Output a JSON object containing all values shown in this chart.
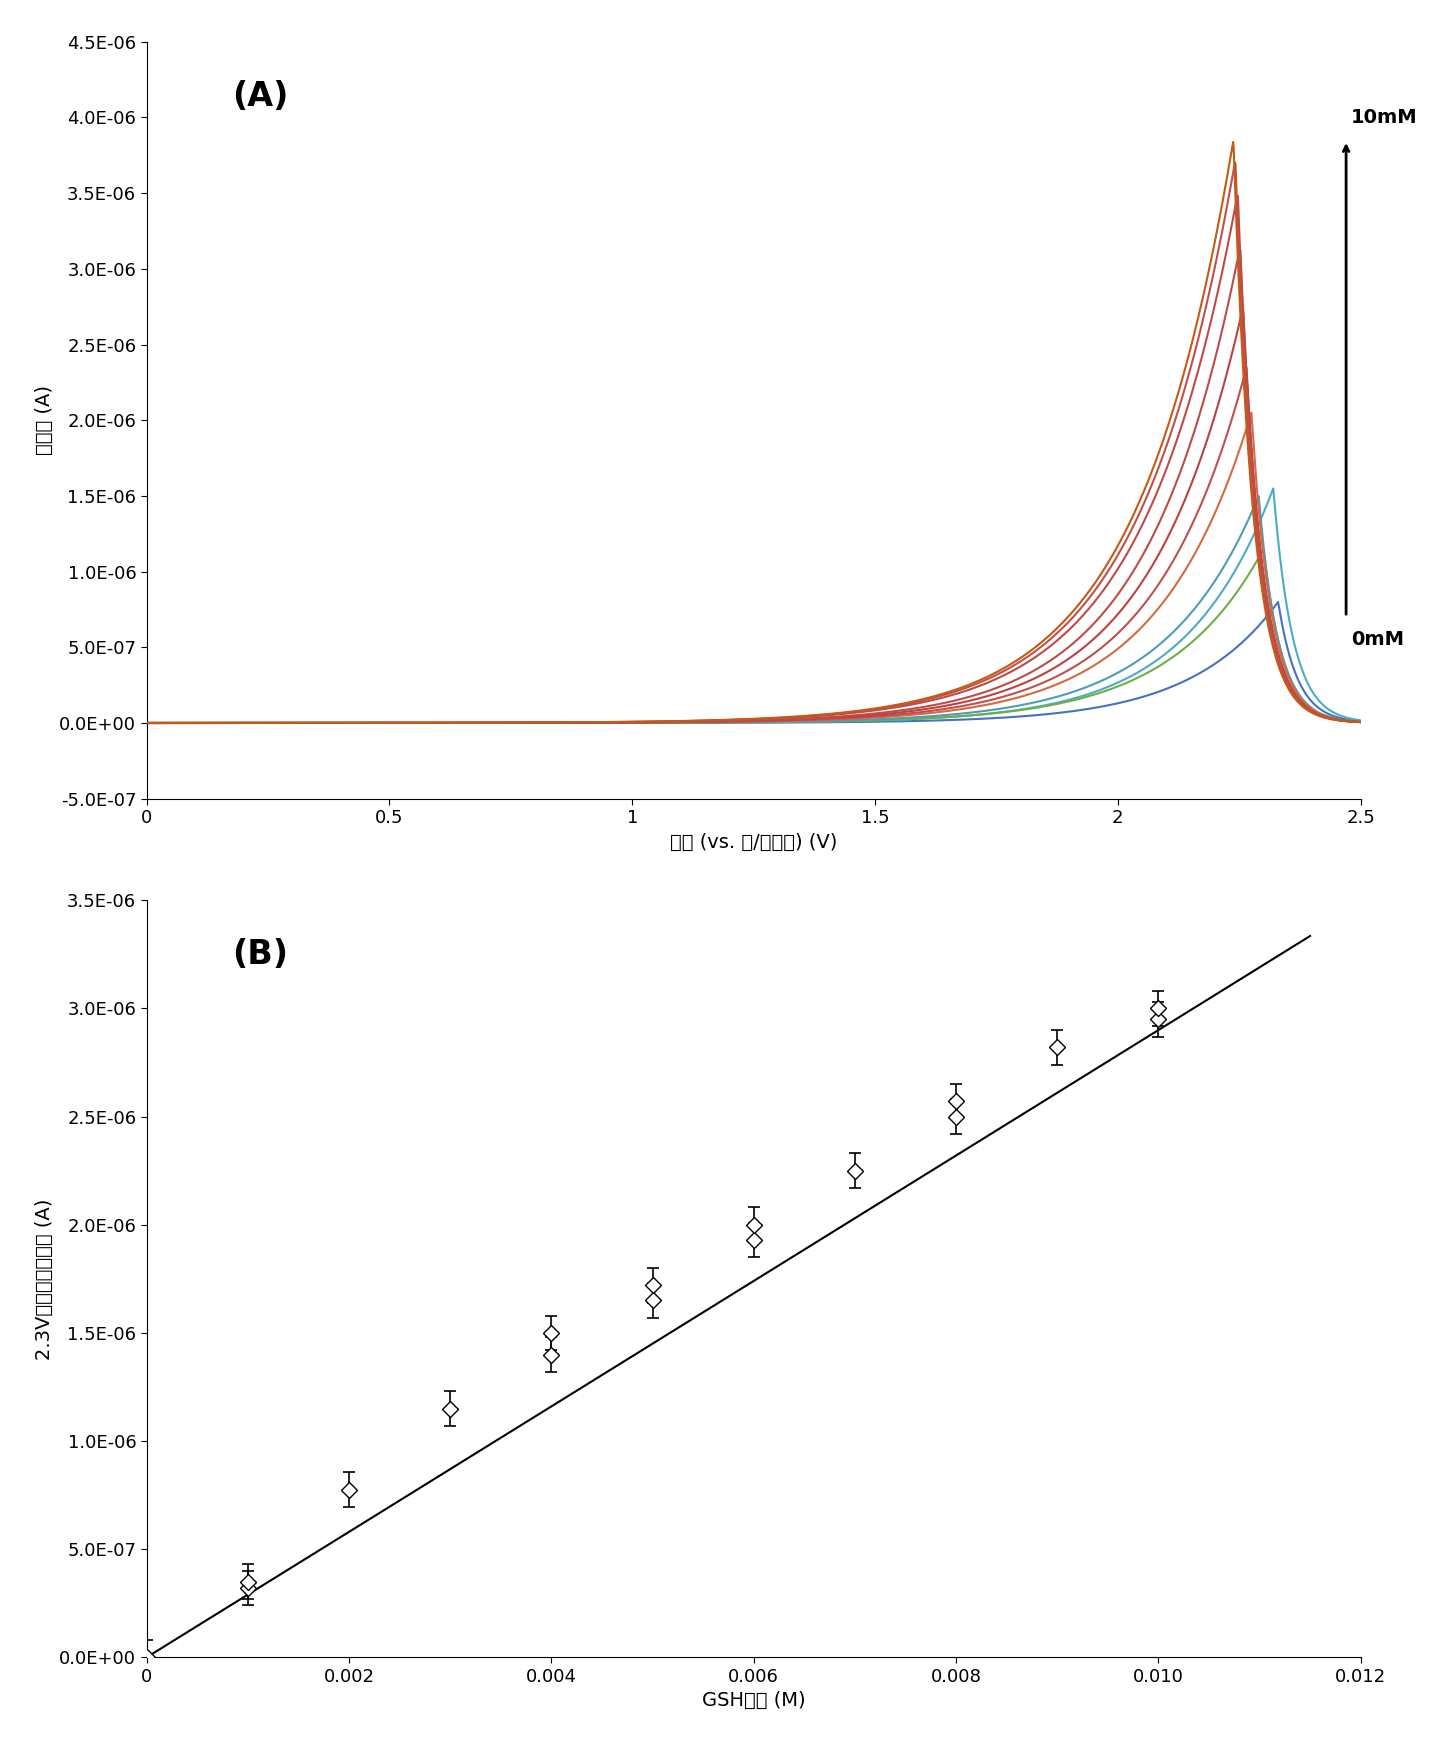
{
  "panel_A": {
    "label": "(A)",
    "xlabel": "電位 (vs. 銀/塩化銀) (V)",
    "ylabel": "電流値 (A)",
    "xlim": [
      0,
      2.5
    ],
    "ylim": [
      -5e-07,
      4.5e-06
    ],
    "ytick_labels": [
      "-5.0E-07",
      "0.0E+00",
      "5.0E-07",
      "1.0E-06",
      "1.5E-06",
      "2.0E-06",
      "2.5E-06",
      "3.0E-06",
      "3.5E-06",
      "4.0E-06",
      "4.5E-06"
    ],
    "ytick_vals": [
      -5e-07,
      0,
      5e-07,
      1e-06,
      1.5e-06,
      2e-06,
      2.5e-06,
      3e-06,
      3.5e-06,
      4e-06,
      4.5e-06
    ],
    "xtick_vals": [
      0,
      0.5,
      1,
      1.5,
      2,
      2.5
    ],
    "xtick_labels": [
      "0",
      "0.5",
      "1",
      "1.5",
      "2",
      "2.5"
    ],
    "label_10mM": "10mM",
    "label_0mM": "0mM",
    "curve_colors": [
      "#4472C4",
      "#4BACC6",
      "#70AD47",
      "#4E9DB5",
      "#D46A43",
      "#C0504D",
      "#BF4040",
      "#BE4B48",
      "#BE4B48",
      "#C0504D",
      "#C55A11"
    ],
    "peak_vs": [
      2.33,
      2.32,
      2.3,
      2.29,
      2.275,
      2.265,
      2.258,
      2.252,
      2.247,
      2.242,
      2.238
    ],
    "peak_is": [
      8e-07,
      1.55e-06,
      1.15e-06,
      1.5e-06,
      2.05e-06,
      2.35e-06,
      2.75e-06,
      3.15e-06,
      3.5e-06,
      3.72e-06,
      3.85e-06
    ],
    "sharpness": [
      5.5,
      5.5,
      5.2,
      5.2,
      5.2,
      5.2,
      5.2,
      5.2,
      5.0,
      5.0,
      5.0
    ]
  },
  "panel_B": {
    "label": "(B)",
    "xlabel": "GSH濃度 (M)",
    "ylabel": "2.3Vにおける電流値 (A)",
    "xlim": [
      0,
      0.012
    ],
    "ylim": [
      0,
      3.5e-06
    ],
    "ytick_vals": [
      0,
      5e-07,
      1e-06,
      1.5e-06,
      2e-06,
      2.5e-06,
      3e-06,
      3.5e-06
    ],
    "ytick_labels": [
      "0.0E+00",
      "5.0E-07",
      "1.0E-06",
      "1.5E-06",
      "2.0E-06",
      "2.5E-06",
      "3.0E-06",
      "3.5E-06"
    ],
    "xtick_vals": [
      0,
      0.002,
      0.004,
      0.006,
      0.008,
      0.01,
      0.012
    ],
    "xtick_labels": [
      "0",
      "0.002",
      "0.004",
      "0.006",
      "0.008",
      "0.010",
      "0.012"
    ],
    "pts_x": [
      0,
      0.001,
      0.001,
      0.002,
      0.003,
      0.004,
      0.004,
      0.005,
      0.005,
      0.006,
      0.006,
      0.007,
      0.008,
      0.008,
      0.009,
      0.01,
      0.01
    ],
    "pts_y": [
      0,
      3.2e-07,
      3.5e-07,
      7.75e-07,
      1.15e-06,
      1.4e-06,
      1.5e-06,
      1.65e-06,
      1.72e-06,
      1.93e-06,
      2e-06,
      2.25e-06,
      2.5e-06,
      2.57e-06,
      2.82e-06,
      2.95e-06,
      3e-06
    ],
    "pts_yerr": [
      1.5e-08,
      5e-08,
      5e-08,
      5e-08,
      6e-08,
      7e-08,
      7e-08,
      5e-08,
      5e-08,
      7e-08,
      7e-08,
      6e-08,
      7e-08,
      7e-08,
      6e-08,
      6e-08,
      6e-08
    ],
    "fit_x": [
      0,
      0.0115
    ],
    "fit_y": [
      0,
      3.335e-06
    ]
  },
  "bg_color": "#ffffff"
}
